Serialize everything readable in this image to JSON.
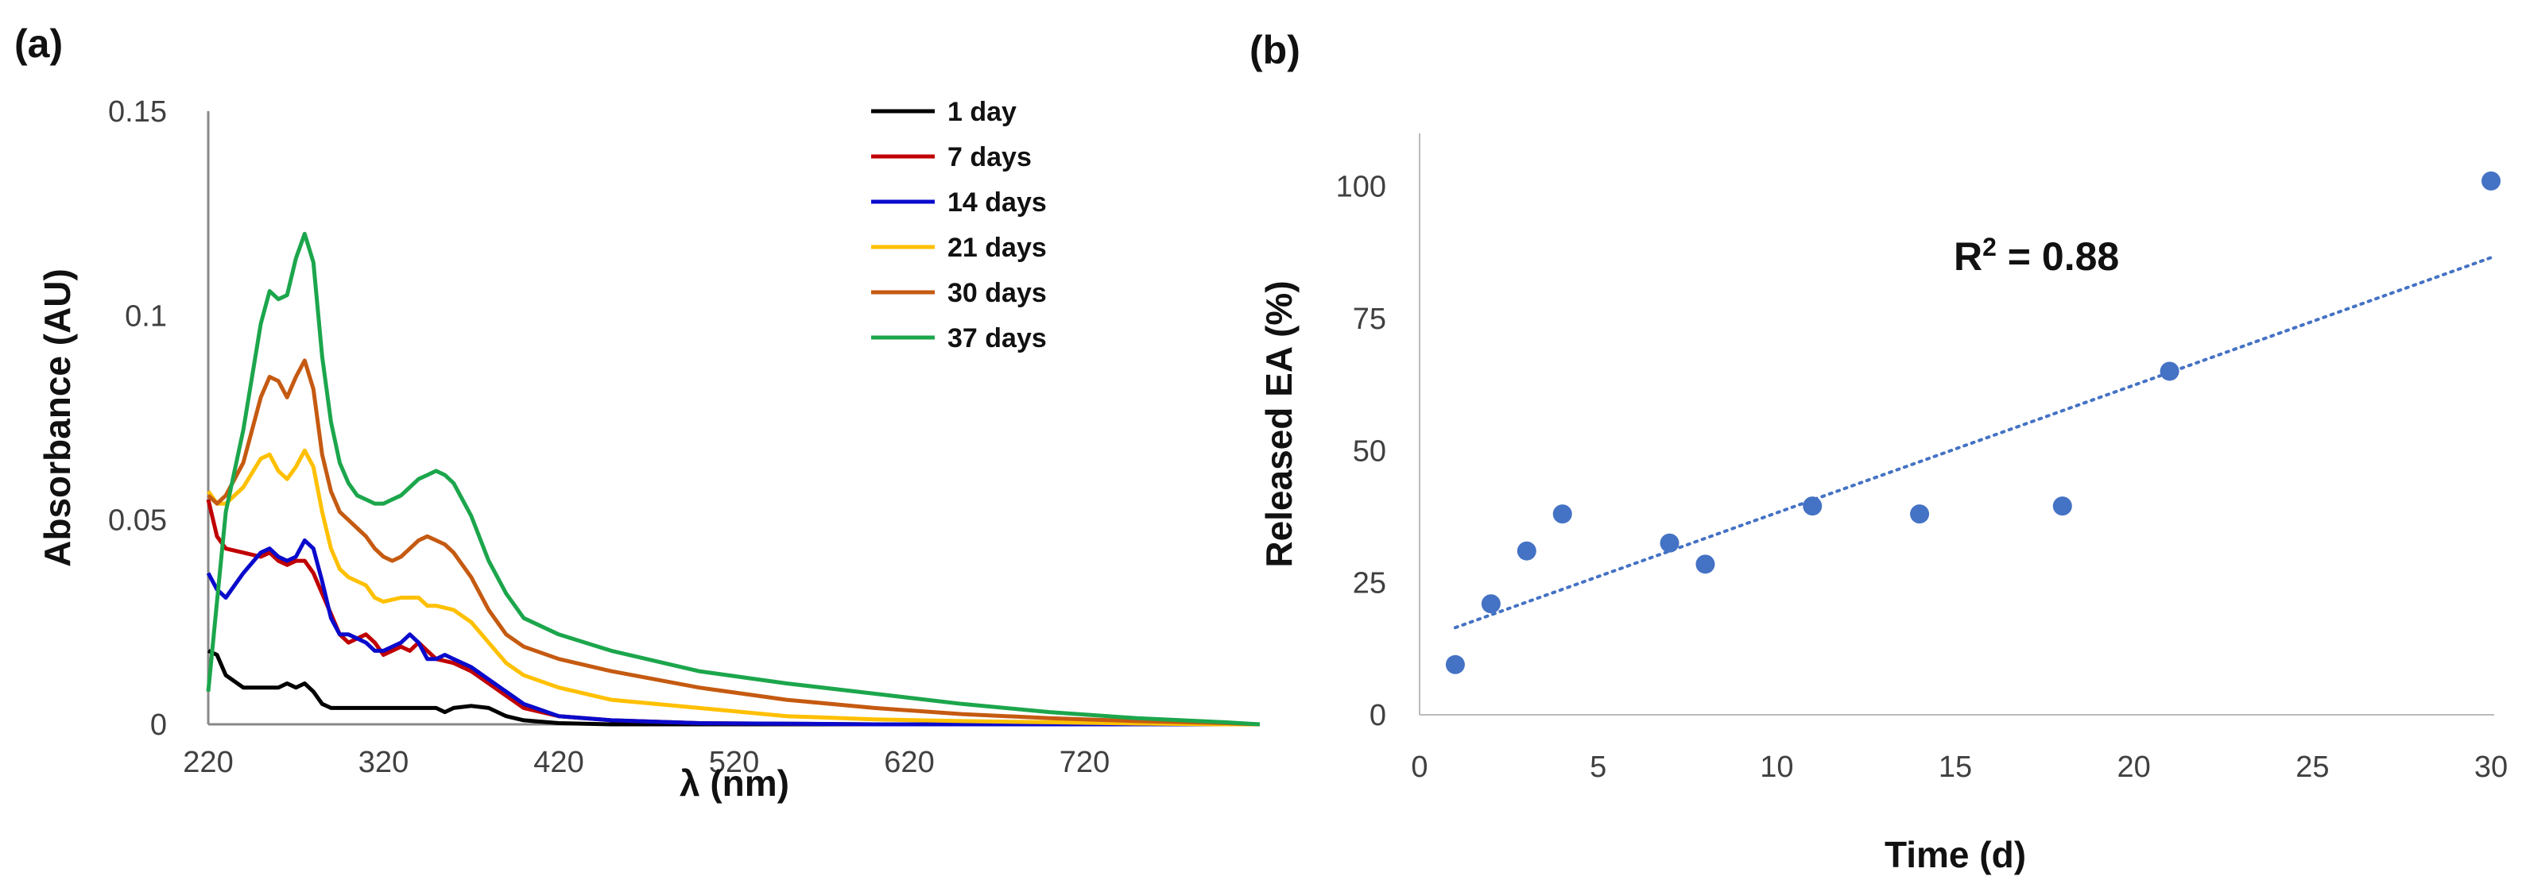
{
  "chart_data": [
    {
      "panel_label": "(a)",
      "type": "line",
      "xlabel": "λ (nm)",
      "ylabel": "Absorbance (AU)",
      "xlim": [
        220,
        820
      ],
      "ylim": [
        0,
        0.15
      ],
      "x_ticks": [
        220,
        320,
        420,
        520,
        620,
        720
      ],
      "x_tick_labels": [
        "220",
        "320",
        "420",
        "520",
        "620",
        "720"
      ],
      "y_ticks": [
        0,
        0.05,
        0.1,
        0.15
      ],
      "y_tick_labels": [
        "0",
        "0.05",
        "0.1",
        "0.15"
      ],
      "legend_position": "top-right",
      "grid": false,
      "series": [
        {
          "name": "1 day",
          "color": "#000000",
          "points": [
            [
              220,
              0.018
            ],
            [
              225,
              0.017
            ],
            [
              230,
              0.012
            ],
            [
              240,
              0.009
            ],
            [
              250,
              0.009
            ],
            [
              260,
              0.009
            ],
            [
              265,
              0.01
            ],
            [
              270,
              0.009
            ],
            [
              275,
              0.01
            ],
            [
              280,
              0.008
            ],
            [
              285,
              0.005
            ],
            [
              290,
              0.004
            ],
            [
              300,
              0.004
            ],
            [
              320,
              0.004
            ],
            [
              340,
              0.004
            ],
            [
              350,
              0.004
            ],
            [
              355,
              0.003
            ],
            [
              360,
              0.004
            ],
            [
              370,
              0.0045
            ],
            [
              380,
              0.004
            ],
            [
              390,
              0.002
            ],
            [
              400,
              0.001
            ],
            [
              420,
              0.0003
            ],
            [
              450,
              0.0
            ],
            [
              820,
              0.0
            ]
          ]
        },
        {
          "name": "7 days",
          "color": "#c00000",
          "points": [
            [
              220,
              0.055
            ],
            [
              225,
              0.046
            ],
            [
              230,
              0.043
            ],
            [
              240,
              0.042
            ],
            [
              250,
              0.041
            ],
            [
              255,
              0.042
            ],
            [
              260,
              0.04
            ],
            [
              265,
              0.039
            ],
            [
              270,
              0.04
            ],
            [
              275,
              0.04
            ],
            [
              280,
              0.037
            ],
            [
              285,
              0.032
            ],
            [
              290,
              0.027
            ],
            [
              295,
              0.022
            ],
            [
              300,
              0.02
            ],
            [
              305,
              0.021
            ],
            [
              310,
              0.022
            ],
            [
              315,
              0.02
            ],
            [
              320,
              0.017
            ],
            [
              325,
              0.018
            ],
            [
              330,
              0.019
            ],
            [
              335,
              0.018
            ],
            [
              340,
              0.02
            ],
            [
              345,
              0.018
            ],
            [
              350,
              0.016
            ],
            [
              360,
              0.015
            ],
            [
              370,
              0.013
            ],
            [
              380,
              0.01
            ],
            [
              390,
              0.007
            ],
            [
              400,
              0.004
            ],
            [
              420,
              0.002
            ],
            [
              450,
              0.001
            ],
            [
              500,
              0.0003
            ],
            [
              600,
              0.0
            ],
            [
              820,
              0.0
            ]
          ]
        },
        {
          "name": "14 days",
          "color": "#0a0acc",
          "points": [
            [
              220,
              0.037
            ],
            [
              225,
              0.033
            ],
            [
              230,
              0.031
            ],
            [
              240,
              0.037
            ],
            [
              250,
              0.042
            ],
            [
              255,
              0.043
            ],
            [
              260,
              0.041
            ],
            [
              265,
              0.04
            ],
            [
              270,
              0.041
            ],
            [
              275,
              0.045
            ],
            [
              280,
              0.043
            ],
            [
              285,
              0.035
            ],
            [
              290,
              0.026
            ],
            [
              295,
              0.022
            ],
            [
              300,
              0.022
            ],
            [
              305,
              0.021
            ],
            [
              310,
              0.02
            ],
            [
              315,
              0.018
            ],
            [
              320,
              0.018
            ],
            [
              325,
              0.019
            ],
            [
              330,
              0.02
            ],
            [
              335,
              0.022
            ],
            [
              340,
              0.02
            ],
            [
              345,
              0.016
            ],
            [
              350,
              0.016
            ],
            [
              355,
              0.017
            ],
            [
              360,
              0.016
            ],
            [
              370,
              0.014
            ],
            [
              380,
              0.011
            ],
            [
              390,
              0.008
            ],
            [
              400,
              0.005
            ],
            [
              420,
              0.002
            ],
            [
              450,
              0.001
            ],
            [
              500,
              0.0003
            ],
            [
              600,
              0.0
            ],
            [
              820,
              0.0
            ]
          ]
        },
        {
          "name": "21 days",
          "color": "#ffc000",
          "points": [
            [
              220,
              0.057
            ],
            [
              225,
              0.054
            ],
            [
              230,
              0.054
            ],
            [
              240,
              0.058
            ],
            [
              250,
              0.065
            ],
            [
              255,
              0.066
            ],
            [
              260,
              0.062
            ],
            [
              265,
              0.06
            ],
            [
              270,
              0.063
            ],
            [
              275,
              0.067
            ],
            [
              280,
              0.063
            ],
            [
              285,
              0.052
            ],
            [
              290,
              0.043
            ],
            [
              295,
              0.038
            ],
            [
              300,
              0.036
            ],
            [
              305,
              0.035
            ],
            [
              310,
              0.034
            ],
            [
              315,
              0.031
            ],
            [
              320,
              0.03
            ],
            [
              330,
              0.031
            ],
            [
              340,
              0.031
            ],
            [
              345,
              0.029
            ],
            [
              350,
              0.029
            ],
            [
              360,
              0.028
            ],
            [
              370,
              0.025
            ],
            [
              380,
              0.02
            ],
            [
              390,
              0.015
            ],
            [
              400,
              0.012
            ],
            [
              420,
              0.009
            ],
            [
              450,
              0.006
            ],
            [
              500,
              0.004
            ],
            [
              550,
              0.002
            ],
            [
              600,
              0.0012
            ],
            [
              650,
              0.0008
            ],
            [
              700,
              0.0005
            ],
            [
              750,
              0.0002
            ],
            [
              800,
              0.0
            ],
            [
              820,
              0.0
            ]
          ]
        },
        {
          "name": "30 days",
          "color": "#c55a11",
          "points": [
            [
              220,
              0.056
            ],
            [
              225,
              0.054
            ],
            [
              230,
              0.056
            ],
            [
              240,
              0.064
            ],
            [
              250,
              0.08
            ],
            [
              255,
              0.085
            ],
            [
              260,
              0.084
            ],
            [
              265,
              0.08
            ],
            [
              270,
              0.085
            ],
            [
              275,
              0.089
            ],
            [
              280,
              0.082
            ],
            [
              285,
              0.066
            ],
            [
              290,
              0.057
            ],
            [
              295,
              0.052
            ],
            [
              300,
              0.05
            ],
            [
              305,
              0.048
            ],
            [
              310,
              0.046
            ],
            [
              315,
              0.043
            ],
            [
              320,
              0.041
            ],
            [
              325,
              0.04
            ],
            [
              330,
              0.041
            ],
            [
              335,
              0.043
            ],
            [
              340,
              0.045
            ],
            [
              345,
              0.046
            ],
            [
              350,
              0.045
            ],
            [
              355,
              0.044
            ],
            [
              360,
              0.042
            ],
            [
              370,
              0.036
            ],
            [
              380,
              0.028
            ],
            [
              390,
              0.022
            ],
            [
              400,
              0.019
            ],
            [
              420,
              0.016
            ],
            [
              450,
              0.013
            ],
            [
              500,
              0.009
            ],
            [
              550,
              0.006
            ],
            [
              600,
              0.004
            ],
            [
              650,
              0.0025
            ],
            [
              700,
              0.0015
            ],
            [
              750,
              0.0008
            ],
            [
              800,
              0.0003
            ],
            [
              820,
              0.0
            ]
          ]
        },
        {
          "name": "37 days",
          "color": "#1ca64c",
          "points": [
            [
              220,
              0.008
            ],
            [
              225,
              0.03
            ],
            [
              230,
              0.052
            ],
            [
              240,
              0.072
            ],
            [
              250,
              0.098
            ],
            [
              255,
              0.106
            ],
            [
              260,
              0.104
            ],
            [
              265,
              0.105
            ],
            [
              270,
              0.114
            ],
            [
              275,
              0.12
            ],
            [
              280,
              0.113
            ],
            [
              285,
              0.09
            ],
            [
              290,
              0.074
            ],
            [
              295,
              0.064
            ],
            [
              300,
              0.059
            ],
            [
              305,
              0.056
            ],
            [
              310,
              0.055
            ],
            [
              315,
              0.054
            ],
            [
              320,
              0.054
            ],
            [
              325,
              0.055
            ],
            [
              330,
              0.056
            ],
            [
              335,
              0.058
            ],
            [
              340,
              0.06
            ],
            [
              345,
              0.061
            ],
            [
              350,
              0.062
            ],
            [
              355,
              0.061
            ],
            [
              360,
              0.059
            ],
            [
              370,
              0.051
            ],
            [
              380,
              0.04
            ],
            [
              390,
              0.032
            ],
            [
              400,
              0.026
            ],
            [
              420,
              0.022
            ],
            [
              450,
              0.018
            ],
            [
              500,
              0.013
            ],
            [
              550,
              0.01
            ],
            [
              600,
              0.0075
            ],
            [
              650,
              0.005
            ],
            [
              700,
              0.003
            ],
            [
              750,
              0.0015
            ],
            [
              800,
              0.0005
            ],
            [
              820,
              0.0
            ]
          ]
        }
      ]
    },
    {
      "panel_label": "(b)",
      "type": "scatter",
      "xlabel": "Time (d)",
      "ylabel": "Released EA (%)",
      "xlim": [
        0,
        30
      ],
      "ylim": [
        0,
        110
      ],
      "x_ticks": [
        0,
        5,
        10,
        15,
        20,
        25,
        30
      ],
      "x_tick_labels": [
        "0",
        "5",
        "10",
        "15",
        "20",
        "25",
        "30"
      ],
      "y_ticks": [
        0,
        25,
        50,
        75,
        100
      ],
      "y_tick_labels": [
        "0",
        "25",
        "50",
        "75",
        "100"
      ],
      "grid": false,
      "marker_color": "#4472c4",
      "points": [
        [
          1,
          9.5
        ],
        [
          2,
          21
        ],
        [
          3,
          31
        ],
        [
          4,
          38
        ],
        [
          7,
          32.5
        ],
        [
          8,
          28.5
        ],
        [
          11,
          39.5
        ],
        [
          14,
          38
        ],
        [
          18,
          39.5
        ],
        [
          21,
          65
        ],
        [
          30,
          101
        ]
      ],
      "trendline": {
        "type": "linear",
        "style": "dotted",
        "color": "#4472c4",
        "start": [
          1,
          16.5
        ],
        "end": [
          30,
          86.5
        ]
      },
      "annotation": {
        "prefix": "R",
        "superscript": "2",
        "suffix": " = 0.88"
      }
    }
  ]
}
